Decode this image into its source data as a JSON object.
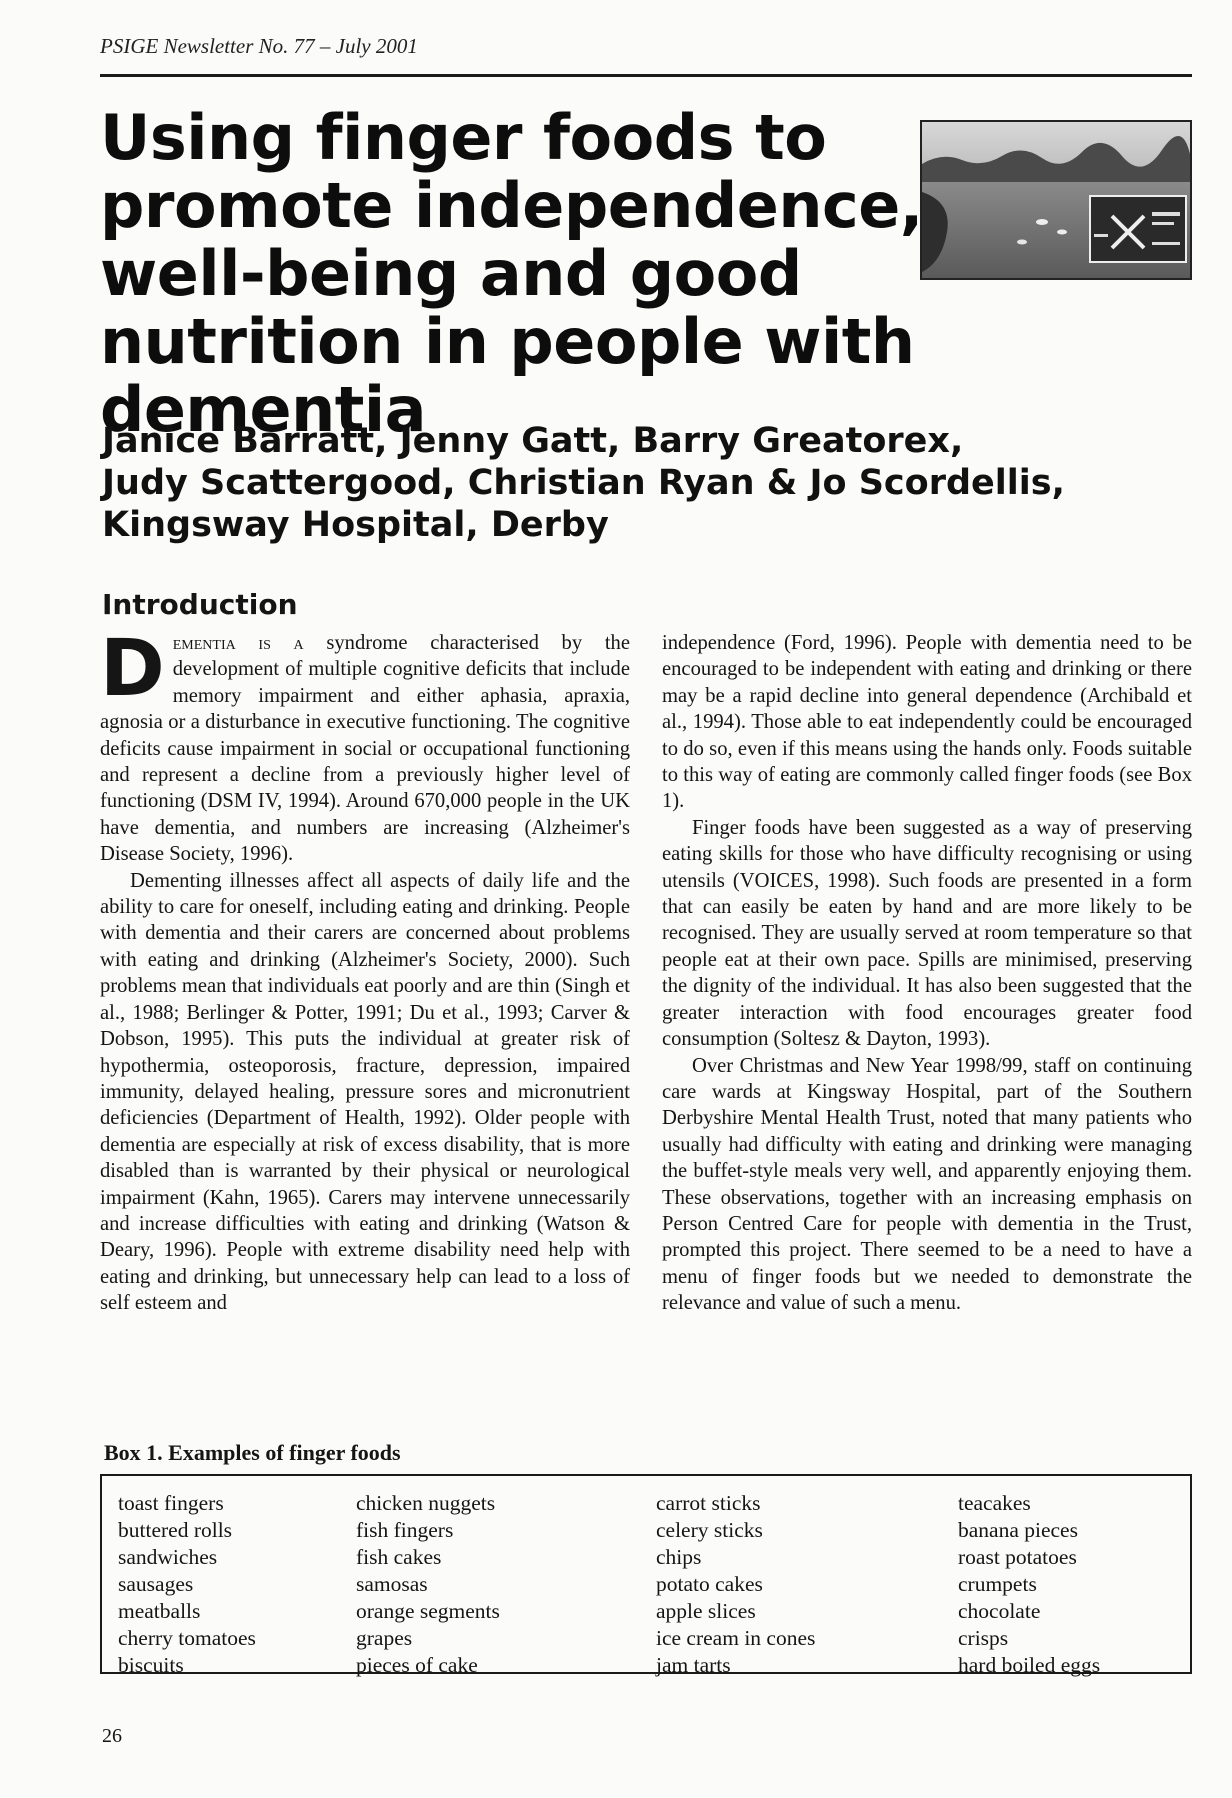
{
  "running_head": "PSIGE Newsletter No. 77 – July 2001",
  "title_lines": [
    "Using finger foods to",
    "promote independence,",
    "well-being and good",
    "nutrition in people with dementia"
  ],
  "photo": {
    "description": "photo-of-lake-with-signpost",
    "sign_text": "R.Trent & Mersey Canal"
  },
  "authors_lines": [
    "Janice Barratt, Jenny Gatt, Barry Greatorex,",
    "Judy Scattergood, Christian Ryan & Jo Scordellis,",
    "Kingsway Hospital, Derby"
  ],
  "section_heading": "Introduction",
  "left_column": {
    "drop_cap": "D",
    "lead_smallcaps": "ementia is a",
    "p1_rest": " syndrome characterised by the development of multiple cognitive deficits that include memory impairment and either aphasia, apraxia, agnosia or a disturbance in executive functioning. The cognitive deficits cause impairment in social or occupational functioning and represent a decline from a previously higher level of functioning (DSM IV, 1994). Around 670,000 people in the UK have dementia, and numbers are increasing (Alzheimer's Disease Society, 1996).",
    "p2": "Dementing illnesses affect all aspects of daily life and the ability to care for oneself, including eating and drinking. People with dementia and their carers are concerned about problems with eating and drinking (Alzheimer's Society, 2000). Such problems mean that individuals eat poorly and are thin (Singh et al., 1988; Berlinger & Potter, 1991; Du et al., 1993; Carver & Dobson, 1995). This puts the individual at greater risk of hypothermia, osteoporosis, fracture, depression, impaired immunity, delayed healing, pressure sores and micronutrient deficiencies (Department of Health, 1992). Older people with dementia are especially at risk of excess disability, that is more disabled than is warranted by their physical or neurological impairment (Kahn, 1965). Carers may intervene unnecessarily and increase difficulties with eating and drinking (Watson & Deary, 1996). People with extreme disability need help with eating and drinking, but unnecessary help can lead to a loss of self esteem and"
  },
  "right_column": {
    "p1": "independence (Ford, 1996). People with dementia need to be encouraged to be independent with eating and drinking or there may be a rapid decline into general dependence (Archibald et al., 1994). Those able to eat independently could be encouraged to do so, even if this means using the hands only. Foods suitable to this way of eating are commonly called finger foods (see Box 1).",
    "p2": "Finger foods have been suggested as a way of preserving eating skills for those who have difficulty recognising or using utensils (VOICES, 1998). Such foods are presented in a form that can easily be eaten by hand and are more likely to be recognised. They are usually served at room temperature so that people eat at their own pace. Spills are minimised, preserving the dignity of the individual. It has also been suggested that the greater interaction with food encourages greater food consumption (Soltesz & Dayton, 1993).",
    "p3": "Over Christmas and New Year 1998/99, staff on continuing care wards at Kingsway Hospital, part of the Southern Derbyshire Mental Health Trust, noted that many patients who usually had difficulty with eating and drinking were managing the buffet-style meals very well, and apparently enjoying them. These observations, together with an increasing emphasis on Person Centred Care for people with dementia in the Trust, prompted this project. There seemed to be a need to have a menu of finger foods but we needed to demonstrate the relevance and value of such a menu."
  },
  "box": {
    "title": "Box 1. Examples of finger foods",
    "columns": [
      [
        "toast fingers",
        "buttered rolls",
        "sandwiches",
        "sausages",
        "meatballs",
        "cherry tomatoes",
        "biscuits"
      ],
      [
        "chicken nuggets",
        "fish fingers",
        "fish cakes",
        "samosas",
        "orange segments",
        "grapes",
        "pieces of cake"
      ],
      [
        "carrot sticks",
        "celery sticks",
        "chips",
        "potato cakes",
        "apple slices",
        "ice cream in cones",
        "jam tarts"
      ],
      [
        "teacakes",
        "banana pieces",
        "roast potatoes",
        "crumpets",
        "chocolate",
        "crisps",
        "hard boiled eggs"
      ]
    ]
  },
  "page_number": "26"
}
